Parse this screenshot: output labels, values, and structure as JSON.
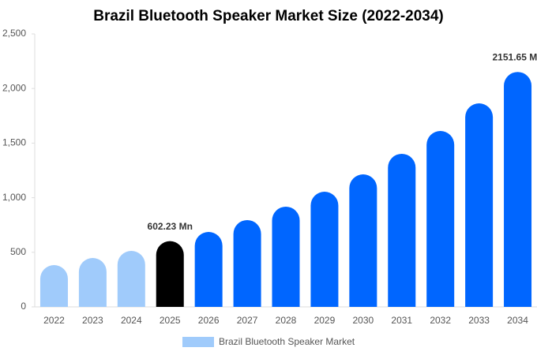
{
  "chart_data": {
    "type": "bar",
    "title": "Brazil Bluetooth Speaker Market Size (2022-2034)",
    "categories": [
      "2022",
      "2023",
      "2024",
      "2025",
      "2026",
      "2027",
      "2028",
      "2029",
      "2030",
      "2031",
      "2032",
      "2033",
      "2034"
    ],
    "series": [
      {
        "name": "Brazil Bluetooth Speaker Market",
        "color": "#a0cbfb",
        "values": [
          383,
          448,
          513,
          602.23,
          686,
          795,
          918,
          1055,
          1214,
          1402,
          1611,
          1864,
          2151.65
        ],
        "value_labels": [
          null,
          null,
          null,
          "602.23 Mn",
          null,
          null,
          null,
          null,
          null,
          null,
          null,
          null,
          "2151.65 Mn"
        ],
        "colors": [
          "#a0cbfb",
          "#a0cbfb",
          "#a0cbfb",
          "#000000",
          "#0066ff",
          "#0066ff",
          "#0066ff",
          "#0066ff",
          "#0066ff",
          "#0066ff",
          "#0066ff",
          "#0066ff",
          "#0066ff"
        ]
      }
    ],
    "ylim": [
      0,
      2500
    ],
    "yticks": [
      0,
      500,
      {
        "value": 1000,
        "label": "1,000"
      },
      {
        "value": 1500,
        "label": "1,500"
      },
      {
        "value": 2000,
        "label": "2,000"
      },
      {
        "value": 2500,
        "label": "2,500"
      }
    ],
    "grid": false
  }
}
